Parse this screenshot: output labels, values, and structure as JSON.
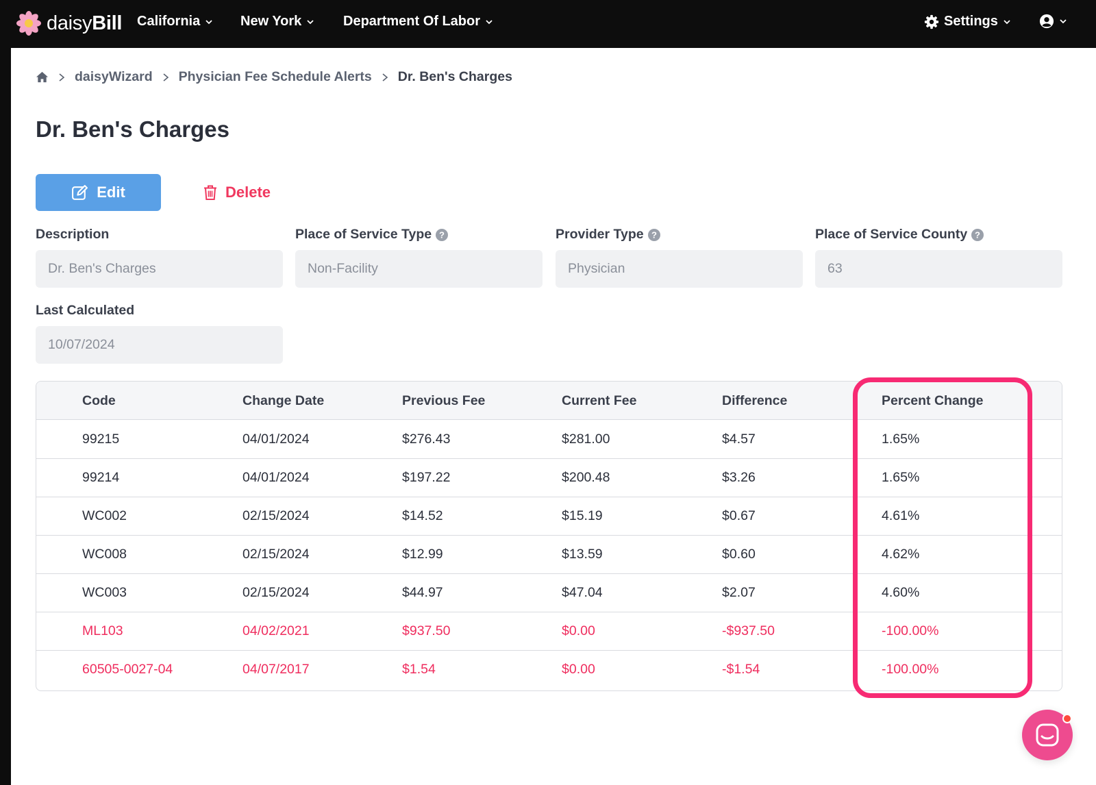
{
  "app": {
    "logo_light": "daisy",
    "logo_bold": "Bill"
  },
  "nav": {
    "items": [
      {
        "label": "California"
      },
      {
        "label": "New York"
      },
      {
        "label": "Department Of Labor"
      }
    ],
    "settings_label": "Settings"
  },
  "breadcrumb": {
    "items": [
      "daisyWizard",
      "Physician Fee Schedule Alerts"
    ],
    "current": "Dr. Ben's Charges"
  },
  "page": {
    "title": "Dr. Ben's Charges"
  },
  "actions": {
    "edit_label": "Edit",
    "delete_label": "Delete"
  },
  "fields": {
    "description": {
      "label": "Description",
      "value": "Dr. Ben's Charges"
    },
    "place_of_service_type": {
      "label": "Place of Service Type",
      "value": "Non-Facility"
    },
    "provider_type": {
      "label": "Provider Type",
      "value": "Physician"
    },
    "place_of_service_county": {
      "label": "Place of Service County",
      "value": "63"
    },
    "last_calculated": {
      "label": "Last Calculated",
      "value": "10/07/2024"
    }
  },
  "table": {
    "columns": [
      "Code",
      "Change Date",
      "Previous Fee",
      "Current Fee",
      "Difference",
      "Percent Change"
    ],
    "rows": [
      {
        "code": "99215",
        "change_date": "04/01/2024",
        "previous_fee": "$276.43",
        "current_fee": "$281.00",
        "difference": "$4.57",
        "percent_change": "1.65%",
        "status": "active"
      },
      {
        "code": "99214",
        "change_date": "04/01/2024",
        "previous_fee": "$197.22",
        "current_fee": "$200.48",
        "difference": "$3.26",
        "percent_change": "1.65%",
        "status": "active"
      },
      {
        "code": "WC002",
        "change_date": "02/15/2024",
        "previous_fee": "$14.52",
        "current_fee": "$15.19",
        "difference": "$0.67",
        "percent_change": "4.61%",
        "status": "active"
      },
      {
        "code": "WC008",
        "change_date": "02/15/2024",
        "previous_fee": "$12.99",
        "current_fee": "$13.59",
        "difference": "$0.60",
        "percent_change": "4.62%",
        "status": "active"
      },
      {
        "code": "WC003",
        "change_date": "02/15/2024",
        "previous_fee": "$44.97",
        "current_fee": "$47.04",
        "difference": "$2.07",
        "percent_change": "4.60%",
        "status": "active"
      },
      {
        "code": "ML103",
        "change_date": "04/02/2021",
        "previous_fee": "$937.50",
        "current_fee": "$0.00",
        "difference": "-$937.50",
        "percent_change": "-100.00%",
        "status": "removed"
      },
      {
        "code": "60505-0027-04",
        "change_date": "04/07/2017",
        "previous_fee": "$1.54",
        "current_fee": "$0.00",
        "difference": "-$1.54",
        "percent_change": "-100.00%",
        "status": "removed"
      }
    ]
  },
  "colors": {
    "nav_bg": "#0d0d0d",
    "primary": "#5aa0e6",
    "danger": "#f0385f",
    "removed_row_text": "#ef2d5e",
    "highlight": "#f72a73",
    "chat_launcher": "#ee4b8f"
  },
  "icons": [
    "daisy-logo-icon",
    "chevron-down-icon",
    "gear-icon",
    "user-circle-icon",
    "home-icon",
    "chevron-right-icon",
    "edit-icon",
    "trash-icon",
    "help-icon",
    "chat-icon"
  ]
}
